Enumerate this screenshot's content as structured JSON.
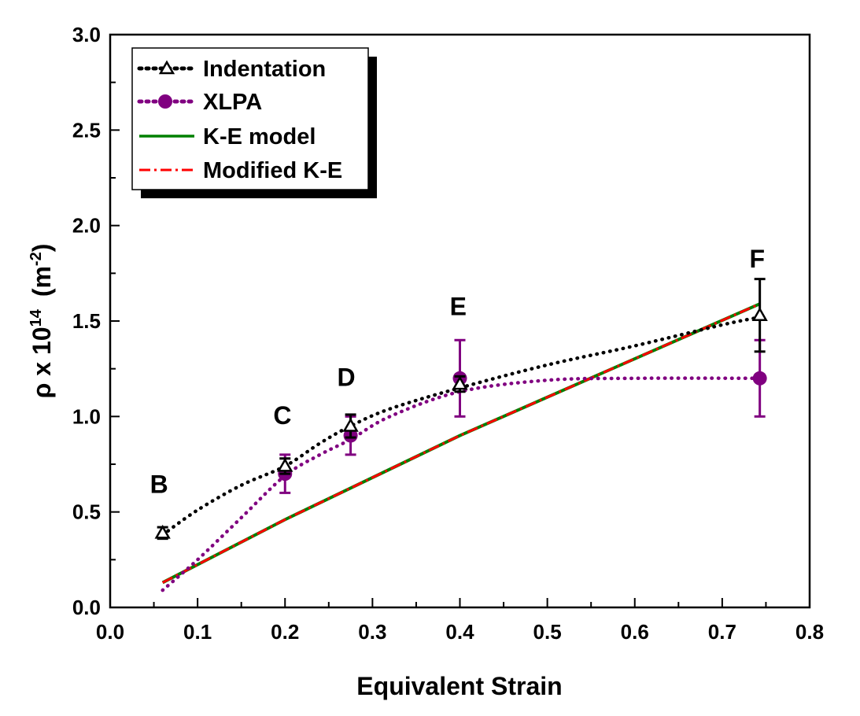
{
  "chart_data": {
    "type": "line",
    "xlabel": "Equivalent Strain",
    "ylabel_prefix": "ρ x 10",
    "ylabel_exp": "14",
    "ylabel_unit_open": "(m",
    "ylabel_unit_exp": "-2",
    "ylabel_unit_close": ")",
    "xlim": [
      0.0,
      0.8
    ],
    "ylim": [
      0.0,
      3.0
    ],
    "xticks": [
      "0.0",
      "0.1",
      "0.2",
      "0.3",
      "0.4",
      "0.5",
      "0.6",
      "0.7",
      "0.8"
    ],
    "yticks": [
      "0.0",
      "0.5",
      "1.0",
      "1.5",
      "2.0",
      "2.5",
      "3.0"
    ],
    "grid": false,
    "legend_position": "top-left",
    "series": [
      {
        "name": "Indentation",
        "color": "#000000",
        "marker": "open-triangle",
        "line_style": "dotted",
        "x": [
          0.06,
          0.2,
          0.275,
          0.4,
          0.743
        ],
        "y": [
          0.39,
          0.74,
          0.95,
          1.17,
          1.53
        ],
        "err": [
          0.03,
          0.04,
          0.06,
          0.04,
          0.19
        ],
        "curve_x": [
          0.06,
          0.1,
          0.15,
          0.2,
          0.24,
          0.275,
          0.32,
          0.4,
          0.5,
          0.6,
          0.7,
          0.743
        ],
        "curve_y": [
          0.38,
          0.51,
          0.64,
          0.74,
          0.86,
          0.95,
          1.04,
          1.15,
          1.27,
          1.37,
          1.48,
          1.52
        ]
      },
      {
        "name": "XLPA",
        "color": "#800080",
        "marker": "filled-circle",
        "line_style": "dotted",
        "x": [
          0.2,
          0.275,
          0.4,
          0.743
        ],
        "y": [
          0.7,
          0.9,
          1.2,
          1.2
        ],
        "err": [
          0.1,
          0.1,
          0.2,
          0.2
        ],
        "curve_x": [
          0.06,
          0.1,
          0.15,
          0.2,
          0.24,
          0.275,
          0.32,
          0.4,
          0.5,
          0.6,
          0.743
        ],
        "curve_y": [
          0.09,
          0.25,
          0.47,
          0.69,
          0.8,
          0.88,
          1.0,
          1.13,
          1.19,
          1.2,
          1.2
        ]
      },
      {
        "name": "K-E model",
        "color": "#008000",
        "line_style": "solid",
        "x": [
          0.06,
          0.2,
          0.4,
          0.743
        ],
        "y": [
          0.13,
          0.46,
          0.9,
          1.59
        ]
      },
      {
        "name": "Modified K-E",
        "color": "#ff0000",
        "line_style": "dash-dot",
        "x": [
          0.06,
          0.2,
          0.4,
          0.743
        ],
        "y": [
          0.13,
          0.46,
          0.9,
          1.59
        ]
      }
    ],
    "annotations": [
      {
        "text": "B",
        "x": 0.056,
        "y": 0.6
      },
      {
        "text": "C",
        "x": 0.197,
        "y": 0.96
      },
      {
        "text": "D",
        "x": 0.27,
        "y": 1.16
      },
      {
        "text": "E",
        "x": 0.398,
        "y": 1.53
      },
      {
        "text": "F",
        "x": 0.74,
        "y": 1.78
      }
    ]
  }
}
